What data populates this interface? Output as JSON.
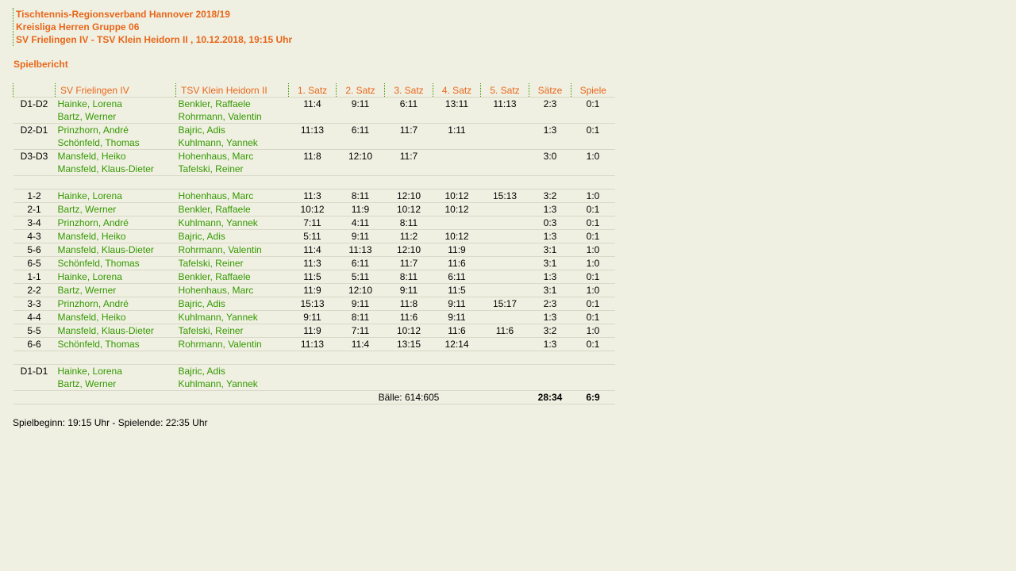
{
  "header": {
    "line1": "Tischtennis-Regionsverband Hannover 2018/19",
    "line2": "Kreisliga Herren Gruppe 06",
    "line3": "SV Frielingen IV - TSV Klein Heidorn II , 10.12.2018, 19:15 Uhr"
  },
  "subtitle": "Spielbericht",
  "columns": [
    "",
    "SV Frielingen IV",
    "TSV Klein Heidorn II",
    "1. Satz",
    "2. Satz",
    "3. Satz",
    "4. Satz",
    "5. Satz",
    "Sätze",
    "Spiele"
  ],
  "doubles": [
    {
      "pair": "D1-D2",
      "home": [
        "Hainke, Lorena",
        "Bartz, Werner"
      ],
      "away": [
        "Benkler, Raffaele",
        "Rohrmann, Valentin"
      ],
      "sets": [
        "11:4",
        "9:11",
        "6:11",
        "13:11",
        "11:13"
      ],
      "saetze": "2:3",
      "spiele": "0:1"
    },
    {
      "pair": "D2-D1",
      "home": [
        "Prinzhorn, André",
        "Schönfeld, Thomas"
      ],
      "away": [
        "Bajric, Adis",
        "Kuhlmann, Yannek"
      ],
      "sets": [
        "11:13",
        "6:11",
        "11:7",
        "1:11",
        ""
      ],
      "saetze": "1:3",
      "spiele": "0:1"
    },
    {
      "pair": "D3-D3",
      "home": [
        "Mansfeld, Heiko",
        "Mansfeld, Klaus-Dieter"
      ],
      "away": [
        "Hohenhaus, Marc",
        "Tafelski, Reiner"
      ],
      "sets": [
        "11:8",
        "12:10",
        "11:7",
        "",
        ""
      ],
      "saetze": "3:0",
      "spiele": "1:0"
    }
  ],
  "singles": [
    {
      "pair": "1-2",
      "home": "Hainke, Lorena",
      "away": "Hohenhaus, Marc",
      "sets": [
        "11:3",
        "8:11",
        "12:10",
        "10:12",
        "15:13"
      ],
      "saetze": "3:2",
      "spiele": "1:0"
    },
    {
      "pair": "2-1",
      "home": "Bartz, Werner",
      "away": "Benkler, Raffaele",
      "sets": [
        "10:12",
        "11:9",
        "10:12",
        "10:12",
        ""
      ],
      "saetze": "1:3",
      "spiele": "0:1"
    },
    {
      "pair": "3-4",
      "home": "Prinzhorn, André",
      "away": "Kuhlmann, Yannek",
      "sets": [
        "7:11",
        "4:11",
        "8:11",
        "",
        ""
      ],
      "saetze": "0:3",
      "spiele": "0:1"
    },
    {
      "pair": "4-3",
      "home": "Mansfeld, Heiko",
      "away": "Bajric, Adis",
      "sets": [
        "5:11",
        "9:11",
        "11:2",
        "10:12",
        ""
      ],
      "saetze": "1:3",
      "spiele": "0:1"
    },
    {
      "pair": "5-6",
      "home": "Mansfeld, Klaus-Dieter",
      "away": "Rohrmann, Valentin",
      "sets": [
        "11:4",
        "11:13",
        "12:10",
        "11:9",
        ""
      ],
      "saetze": "3:1",
      "spiele": "1:0"
    },
    {
      "pair": "6-5",
      "home": "Schönfeld, Thomas",
      "away": "Tafelski, Reiner",
      "sets": [
        "11:3",
        "6:11",
        "11:7",
        "11:6",
        ""
      ],
      "saetze": "3:1",
      "spiele": "1:0"
    },
    {
      "pair": "1-1",
      "home": "Hainke, Lorena",
      "away": "Benkler, Raffaele",
      "sets": [
        "11:5",
        "5:11",
        "8:11",
        "6:11",
        ""
      ],
      "saetze": "1:3",
      "spiele": "0:1"
    },
    {
      "pair": "2-2",
      "home": "Bartz, Werner",
      "away": "Hohenhaus, Marc",
      "sets": [
        "11:9",
        "12:10",
        "9:11",
        "11:5",
        ""
      ],
      "saetze": "3:1",
      "spiele": "1:0"
    },
    {
      "pair": "3-3",
      "home": "Prinzhorn, André",
      "away": "Bajric, Adis",
      "sets": [
        "15:13",
        "9:11",
        "11:8",
        "9:11",
        "15:17"
      ],
      "saetze": "2:3",
      "spiele": "0:1"
    },
    {
      "pair": "4-4",
      "home": "Mansfeld, Heiko",
      "away": "Kuhlmann, Yannek",
      "sets": [
        "9:11",
        "8:11",
        "11:6",
        "9:11",
        ""
      ],
      "saetze": "1:3",
      "spiele": "0:1"
    },
    {
      "pair": "5-5",
      "home": "Mansfeld, Klaus-Dieter",
      "away": "Tafelski, Reiner",
      "sets": [
        "11:9",
        "7:11",
        "10:12",
        "11:6",
        "11:6"
      ],
      "saetze": "3:2",
      "spiele": "1:0"
    },
    {
      "pair": "6-6",
      "home": "Schönfeld, Thomas",
      "away": "Rohrmann, Valentin",
      "sets": [
        "11:13",
        "11:4",
        "13:15",
        "12:14",
        ""
      ],
      "saetze": "1:3",
      "spiele": "0:1"
    }
  ],
  "final_double": {
    "pair": "D1-D1",
    "home": [
      "Hainke, Lorena",
      "Bartz, Werner"
    ],
    "away": [
      "Bajric, Adis",
      "Kuhlmann, Yannek"
    ],
    "sets": [
      "",
      "",
      "",
      "",
      ""
    ],
    "saetze": "",
    "spiele": ""
  },
  "totals": {
    "baelle": "Bälle: 614:605",
    "saetze": "28:34",
    "spiele": "6:9"
  },
  "footer": "Spielbeginn: 19:15 Uhr - Spielende: 22:35 Uhr",
  "colors": {
    "accent": "#e8661a",
    "names": "#339900",
    "background": "#f0f0e2"
  }
}
